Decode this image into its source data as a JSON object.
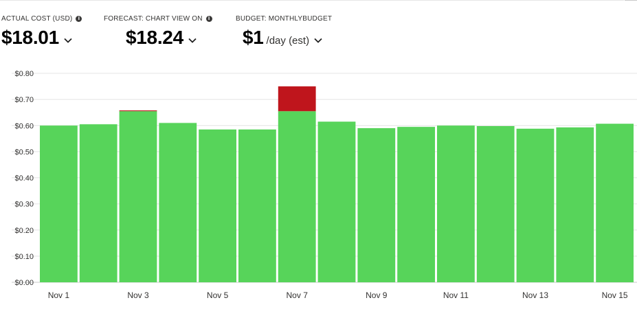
{
  "kpis": {
    "actual": {
      "label": "ACTUAL COST (USD)",
      "value": "$18.01"
    },
    "forecast": {
      "label": "FORECAST: CHART VIEW ON",
      "value": "$18.24"
    },
    "budget": {
      "label": "BUDGET: MONTHLYBUDGET",
      "value": "$1",
      "unit": "/day (est)"
    }
  },
  "icons": {
    "info": "info-icon",
    "dropdown": "chevron-down-icon"
  },
  "colors": {
    "under_budget": "#57d45a",
    "over_budget": "#bf151c",
    "grid": "#e4e4e4",
    "axis_text": "#323130"
  },
  "chart_data": {
    "type": "bar",
    "stacked": true,
    "categories": [
      "Nov 1",
      "Nov 2",
      "Nov 3",
      "Nov 4",
      "Nov 5",
      "Nov 6",
      "Nov 7",
      "Nov 8",
      "Nov 9",
      "Nov 10",
      "Nov 11",
      "Nov 12",
      "Nov 13",
      "Nov 14",
      "Nov 15"
    ],
    "tick_labels": [
      "Nov 1",
      "Nov 3",
      "Nov 5",
      "Nov 7",
      "Nov 9",
      "Nov 11",
      "Nov 13",
      "Nov 15"
    ],
    "yticks": [
      "$0.00",
      "$0.10",
      "$0.20",
      "$0.30",
      "$0.40",
      "$0.50",
      "$0.60",
      "$0.70",
      "$0.80"
    ],
    "ylim": [
      0,
      0.8
    ],
    "grid": true,
    "series": [
      {
        "values": [
          0.6,
          0.605,
          0.655,
          0.61,
          0.585,
          0.585,
          0.655,
          0.615,
          0.59,
          0.595,
          0.6,
          0.598,
          0.588,
          0.593,
          0.607
        ]
      },
      {
        "values": [
          0,
          0,
          0.003,
          0,
          0,
          0,
          0.095,
          0,
          0,
          0,
          0,
          0,
          0,
          0,
          0
        ]
      }
    ]
  }
}
